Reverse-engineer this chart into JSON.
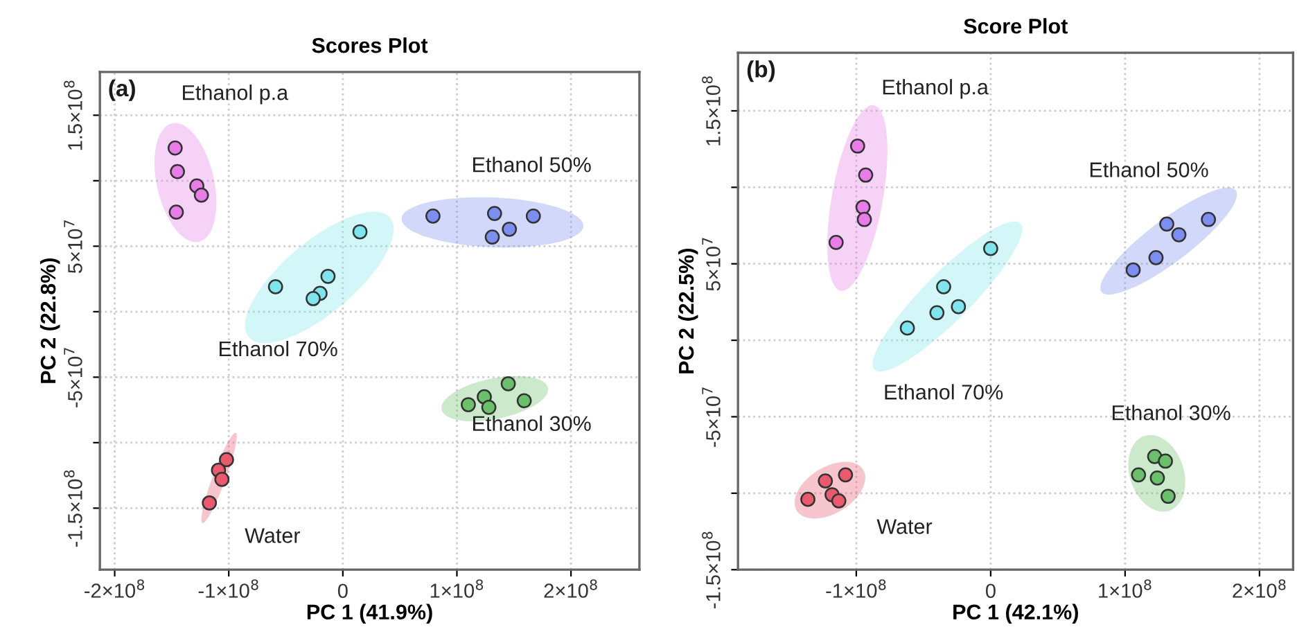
{
  "chart_data": [
    {
      "type": "scatter",
      "title": "Scores Plot",
      "xlabel": "PC 1 (41.9%)",
      "ylabel": "PC 2 (22.8%)",
      "annotations": [
        "(a)"
      ],
      "marker": "circle",
      "grid": true,
      "legend": false,
      "xlim": [
        -213000000,
        260000000
      ],
      "ylim": [
        -197000000,
        183000000
      ],
      "xticks": [
        {
          "value": -200000000,
          "label": "-2×10$^{8}$"
        },
        {
          "value": -100000000,
          "label": "-1×10$^{8}$"
        },
        0,
        {
          "value": 100000000,
          "label": "1×10$^{8}$"
        },
        {
          "value": 200000000,
          "label": "2×10$^{8}$"
        }
      ],
      "yticks": [
        {
          "value": -150000000,
          "label": "-1.5×10$^{8}$"
        },
        {
          "value": -100000000,
          "label": null
        },
        {
          "value": -50000000,
          "label": "-5×10$^{7}$"
        },
        {
          "value": 0,
          "label": null
        },
        {
          "value": 50000000,
          "label": "5×10$^{7}$"
        },
        {
          "value": 100000000,
          "label": null
        },
        {
          "value": 150000000,
          "label": "1.5×10$^{8}$"
        }
      ],
      "series": [
        {
          "name": "Ethanol p.a",
          "color": "#e87de8",
          "x": [
            -147000000,
            -145000000,
            -128000000,
            -124000000,
            -146000000
          ],
          "values": [
            125000000,
            107000000,
            96000000,
            89000000,
            76000000
          ]
        },
        {
          "name": "Ethanol 70%",
          "color": "#80e4ee",
          "x": [
            15000000,
            -59000000,
            -13000000,
            -20000000,
            -26000000
          ],
          "values": [
            61000000,
            19000000,
            27000000,
            14000000,
            10000000
          ]
        },
        {
          "name": "Ethanol 50%",
          "color": "#7c8ff0",
          "x": [
            79000000,
            133000000,
            146000000,
            131000000,
            167000000
          ],
          "values": [
            73000000,
            75000000,
            63000000,
            57000000,
            73000000
          ]
        },
        {
          "name": "Ethanol 30%",
          "color": "#6cc06c",
          "x": [
            145000000,
            124000000,
            128000000,
            110000000,
            159000000
          ],
          "values": [
            -55000000,
            -65000000,
            -73000000,
            -71000000,
            -68000000
          ]
        },
        {
          "name": "Water",
          "color": "#e95a6f",
          "x": [
            -102000000,
            -109000000,
            -107000000,
            -106000000,
            -117000000
          ],
          "values": [
            -113000000,
            -121000000,
            null,
            -128000000,
            -146000000
          ]
        }
      ]
    },
    {
      "type": "scatter",
      "title": "Score Plot",
      "xlabel": "PC 1 (42.1%)",
      "ylabel": "PC 2 (22.5%)",
      "annotations": [
        "(b)"
      ],
      "marker": "circle",
      "grid": true,
      "legend": false,
      "xlim": [
        -188000000,
        225000000
      ],
      "ylim": [
        -150000000,
        188000000
      ],
      "xticks": [
        {
          "value": -100000000,
          "label": "-1×10$^{8}$"
        },
        0,
        {
          "value": 100000000,
          "label": "1×10$^{8}$"
        },
        {
          "value": 200000000,
          "label": "2×10$^{8}$"
        }
      ],
      "yticks": [
        {
          "value": -150000000,
          "label": "-1.5×10$^{8}$"
        },
        {
          "value": -100000000,
          "label": null
        },
        {
          "value": -50000000,
          "label": "-5×10$^{7}$"
        },
        {
          "value": 0,
          "label": null
        },
        {
          "value": 50000000,
          "label": "5×10$^{7}$"
        },
        {
          "value": 100000000,
          "label": null
        },
        {
          "value": 150000000,
          "label": "1.5×10$^{8}$"
        }
      ],
      "series": [
        {
          "name": "Ethanol p.a",
          "color": "#e87de8",
          "x": [
            -99000000,
            -93000000,
            -95000000,
            -94000000,
            -115000000
          ],
          "values": [
            127000000,
            108000000,
            87000000,
            79000000,
            64000000
          ]
        },
        {
          "name": "Ethanol 70%",
          "color": "#80e4ee",
          "x": [
            0,
            -35000000,
            -40000000,
            -24000000,
            -62000000
          ],
          "values": [
            60000000,
            35000000,
            18000000,
            22000000,
            8000000
          ]
        },
        {
          "name": "Ethanol 50%",
          "color": "#7c8ff0",
          "x": [
            131000000,
            140000000,
            162000000,
            123000000,
            106000000
          ],
          "values": [
            76000000,
            69000000,
            79000000,
            54000000,
            46000000
          ]
        },
        {
          "name": "Ethanol 30%",
          "color": "#6cc06c",
          "x": [
            122000000,
            130000000,
            110000000,
            124000000,
            132000000
          ],
          "values": [
            -76000000,
            -79000000,
            -88000000,
            -90000000,
            -102000000
          ]
        },
        {
          "name": "Water",
          "color": "#e95a6f",
          "x": [
            -108000000,
            -123000000,
            -118000000,
            -113000000,
            -136000000
          ],
          "values": [
            -88000000,
            -92000000,
            -101000000,
            -105000000,
            -104000000
          ]
        }
      ]
    }
  ]
}
